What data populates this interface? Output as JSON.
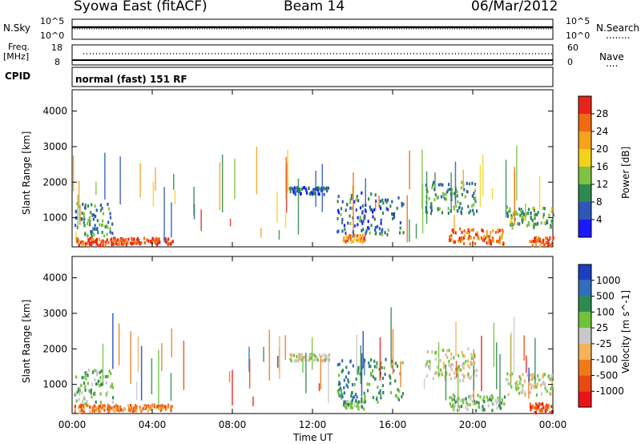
{
  "header": {
    "station": "Syowa East (fitACF)",
    "beam": "Beam 14",
    "date": "06/Mar/2012"
  },
  "strip_labels": {
    "nsky": "N.Sky",
    "nsearch": "N.Search",
    "nsearch_dots": "........",
    "freq_line1": "Freq.",
    "freq_line2": "[MHz]",
    "nave": "Nave",
    "nave_dots": "....",
    "cpid": "CPID",
    "mode": "normal (fast) 151 RF"
  },
  "strip_ticks": {
    "noise_left_top": "10^5",
    "noise_left_bottom": "10^0",
    "noise_right_top": "10^5",
    "noise_right_bottom": "10^0",
    "freq_top": "18",
    "freq_bottom": "8",
    "nave_top": "60",
    "nave_bottom": "0"
  },
  "chart_data": [
    {
      "type": "heatmap",
      "title": "Power",
      "ylabel": "Slant Range [km]",
      "xlabel": "Time UT",
      "x_ticks": [
        "00:00",
        "04:00",
        "08:00",
        "12:00",
        "16:00",
        "20:00",
        "00:00"
      ],
      "xlim_hours": [
        0,
        24
      ],
      "y_ticks": [
        1000,
        2000,
        3000,
        4000
      ],
      "ylim": [
        180,
        4600
      ],
      "colorbar": {
        "label": "Power [dB]",
        "ticks": [
          4,
          8,
          12,
          16,
          20,
          24,
          28
        ],
        "range": [
          0,
          30
        ],
        "colors": [
          "#1a1aff",
          "#2d57b8",
          "#2e8a4e",
          "#7fc241",
          "#f2d21c",
          "#f6a21a",
          "#ef6a12",
          "#e8241a"
        ]
      },
      "clusters": [
        {
          "t": [
            0.1,
            2.0
          ],
          "r": [
            200,
            420
          ],
          "v": 26
        },
        {
          "t": [
            2.0,
            5.0
          ],
          "r": [
            240,
            420
          ],
          "v": 27
        },
        {
          "t": [
            0.1,
            2.0
          ],
          "r": [
            450,
            1400
          ],
          "v": 10
        },
        {
          "t": [
            10.8,
            12.8
          ],
          "r": [
            1650,
            1850
          ],
          "v": 6
        },
        {
          "t": [
            13.5,
            14.6
          ],
          "r": [
            300,
            520
          ],
          "v": 22
        },
        {
          "t": [
            13.2,
            16.5
          ],
          "r": [
            500,
            1700
          ],
          "v": 7
        },
        {
          "t": [
            17.6,
            20.2
          ],
          "r": [
            1100,
            2000
          ],
          "v": 10
        },
        {
          "t": [
            18.8,
            21.6
          ],
          "r": [
            250,
            700
          ],
          "v": 24
        },
        {
          "t": [
            21.6,
            24.0
          ],
          "r": [
            700,
            1300
          ],
          "v": 11
        },
        {
          "t": [
            22.8,
            24.0
          ],
          "r": [
            200,
            450
          ],
          "v": 25
        }
      ]
    },
    {
      "type": "heatmap",
      "title": "Velocity",
      "ylabel": "Slant Range [km]",
      "xlabel": "Time UT",
      "x_ticks": [
        "00:00",
        "04:00",
        "08:00",
        "12:00",
        "16:00",
        "20:00",
        "00:00"
      ],
      "xlim_hours": [
        0,
        24
      ],
      "y_ticks": [
        1000,
        2000,
        3000,
        4000
      ],
      "ylim": [
        180,
        4600
      ],
      "colorbar": {
        "label": "Velocity [m s^-1]",
        "ticks": [
          "1000",
          "500",
          "100",
          "25",
          "-25",
          "-100",
          "-500",
          "-1000"
        ],
        "colors": [
          "#1a3fbf",
          "#2f6eb8",
          "#2e8a4e",
          "#6fc23a",
          "#c8c8c8",
          "#f4b25a",
          "#ef7a1a",
          "#e84a12",
          "#e8141a"
        ]
      },
      "clusters": [
        {
          "t": [
            0.1,
            2.0
          ],
          "r": [
            200,
            420
          ],
          "v": "-100"
        },
        {
          "t": [
            2.0,
            5.0
          ],
          "r": [
            240,
            420
          ],
          "v": "-100"
        },
        {
          "t": [
            0.1,
            2.0
          ],
          "r": [
            450,
            1400
          ],
          "v": "100"
        },
        {
          "t": [
            10.8,
            12.8
          ],
          "r": [
            1650,
            1850
          ],
          "v": "25"
        },
        {
          "t": [
            13.5,
            14.6
          ],
          "r": [
            300,
            520
          ],
          "v": "100"
        },
        {
          "t": [
            13.2,
            16.5
          ],
          "r": [
            500,
            1700
          ],
          "v": "500"
        },
        {
          "t": [
            17.6,
            20.2
          ],
          "r": [
            1100,
            2000
          ],
          "v": "25"
        },
        {
          "t": [
            18.8,
            21.6
          ],
          "r": [
            250,
            700
          ],
          "v": "100"
        },
        {
          "t": [
            21.6,
            24.0
          ],
          "r": [
            700,
            1300
          ],
          "v": "25"
        },
        {
          "t": [
            22.8,
            24.0
          ],
          "r": [
            200,
            450
          ],
          "v": "-500"
        }
      ]
    }
  ]
}
